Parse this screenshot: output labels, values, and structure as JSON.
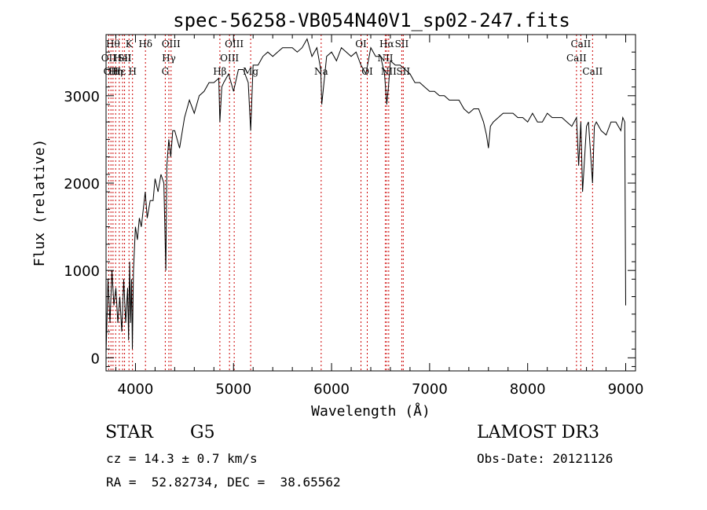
{
  "chart_data": {
    "type": "line",
    "title": "spec-56258-VB054N40V1_sp02-247.fits",
    "xlabel": "Wavelength (Å)",
    "ylabel": "Flux (relative)",
    "xlim": [
      3700,
      9100
    ],
    "ylim": [
      -150,
      3700
    ],
    "xticks": [
      4000,
      5000,
      6000,
      7000,
      8000,
      9000
    ],
    "yticks": [
      0,
      1000,
      2000,
      3000
    ],
    "grid": false,
    "series": [
      {
        "x": [
          3700,
          3720,
          3740,
          3760,
          3780,
          3800,
          3820,
          3840,
          3860,
          3880,
          3900,
          3920,
          3930,
          3940,
          3950,
          3960,
          3968,
          3980,
          4000,
          4020,
          4040,
          4060,
          4080,
          4100,
          4120,
          4150,
          4180,
          4200,
          4230,
          4260,
          4290,
          4310,
          4320,
          4340,
          4360,
          4380,
          4400,
          4450,
          4500,
          4550,
          4600,
          4650,
          4700,
          4750,
          4800,
          4850,
          4861,
          4880,
          4900,
          4950,
          5000,
          5050,
          5100,
          5150,
          5175,
          5200,
          5250,
          5300,
          5350,
          5400,
          5450,
          5500,
          5550,
          5600,
          5650,
          5700,
          5750,
          5800,
          5850,
          5890,
          5900,
          5950,
          6000,
          6050,
          6100,
          6150,
          6200,
          6250,
          6300,
          6350,
          6400,
          6450,
          6500,
          6540,
          6563,
          6580,
          6600,
          6650,
          6700,
          6750,
          6800,
          6850,
          6900,
          6950,
          7000,
          7050,
          7100,
          7150,
          7200,
          7250,
          7300,
          7350,
          7400,
          7450,
          7500,
          7550,
          7580,
          7600,
          7620,
          7650,
          7700,
          7750,
          7800,
          7850,
          7900,
          7950,
          8000,
          8050,
          8100,
          8150,
          8200,
          8250,
          8300,
          8350,
          8400,
          8450,
          8498,
          8520,
          8542,
          8560,
          8600,
          8620,
          8662,
          8680,
          8700,
          8750,
          8800,
          8850,
          8900,
          8950,
          8970,
          8990,
          9000
        ],
        "values": [
          50,
          900,
          400,
          1000,
          600,
          800,
          400,
          700,
          300,
          900,
          400,
          800,
          200,
          1100,
          400,
          900,
          100,
          1000,
          1500,
          1350,
          1600,
          1500,
          1700,
          1900,
          1600,
          1800,
          1800,
          2050,
          1900,
          2100,
          2000,
          1000,
          2200,
          2500,
          2300,
          2600,
          2600,
          2400,
          2750,
          2950,
          2800,
          3000,
          3050,
          3150,
          3150,
          3200,
          2700,
          3100,
          3150,
          3250,
          3050,
          3300,
          3300,
          3150,
          2600,
          3350,
          3350,
          3450,
          3500,
          3450,
          3500,
          3550,
          3550,
          3550,
          3500,
          3550,
          3650,
          3450,
          3550,
          3300,
          2900,
          3450,
          3500,
          3400,
          3550,
          3500,
          3450,
          3500,
          3350,
          3250,
          3550,
          3450,
          3450,
          3250,
          2900,
          3100,
          3400,
          3350,
          3350,
          3300,
          3250,
          3150,
          3150,
          3100,
          3050,
          3050,
          3000,
          3000,
          2950,
          2950,
          2950,
          2850,
          2800,
          2850,
          2850,
          2700,
          2550,
          2400,
          2650,
          2700,
          2750,
          2800,
          2800,
          2800,
          2750,
          2750,
          2700,
          2800,
          2700,
          2700,
          2800,
          2750,
          2750,
          2750,
          2700,
          2650,
          2750,
          2200,
          2700,
          1900,
          2650,
          2700,
          2000,
          2650,
          2700,
          2600,
          2550,
          2700,
          2700,
          2600,
          2750,
          2700,
          600
        ]
      }
    ],
    "lines": [
      {
        "x": 3727,
        "label": "OII",
        "row": 2
      },
      {
        "x": 3750,
        "label": "OII",
        "row": 3
      },
      {
        "x": 3771,
        "label": "Hθ",
        "row": 1
      },
      {
        "x": 3798,
        "label": "Hη",
        "row": 3
      },
      {
        "x": 3835,
        "label": "Hε",
        "row": 3
      },
      {
        "x": 3869,
        "label": "HeI",
        "row": 2
      },
      {
        "x": 3889,
        "label": "SII",
        "row": 2
      },
      {
        "x": 3934,
        "label": "K",
        "row": 1
      },
      {
        "x": 3970,
        "label": "H",
        "row": 3
      },
      {
        "x": 4102,
        "label": "Hδ",
        "row": 1
      },
      {
        "x": 4304,
        "label": "G",
        "row": 3
      },
      {
        "x": 4341,
        "label": "Hγ",
        "row": 2
      },
      {
        "x": 4363,
        "label": "OIII",
        "row": 1
      },
      {
        "x": 4861,
        "label": "Hβ",
        "row": 3
      },
      {
        "x": 4959,
        "label": "OIII",
        "row": 2
      },
      {
        "x": 5007,
        "label": "OIII",
        "row": 1
      },
      {
        "x": 5175,
        "label": "Mg",
        "row": 3
      },
      {
        "x": 5894,
        "label": "Na",
        "row": 3
      },
      {
        "x": 6300,
        "label": "OI",
        "row": 1
      },
      {
        "x": 6364,
        "label": "OI",
        "row": 3
      },
      {
        "x": 6548,
        "label": "NII",
        "row": 2
      },
      {
        "x": 6563,
        "label": "Hα",
        "row": 1
      },
      {
        "x": 6583,
        "label": "NII",
        "row": 3
      },
      {
        "x": 6716,
        "label": "SII",
        "row": 1
      },
      {
        "x": 6731,
        "label": "SII",
        "row": 3
      },
      {
        "x": 8498,
        "label": "CaII",
        "row": 2
      },
      {
        "x": 8542,
        "label": "CaII",
        "row": 1
      },
      {
        "x": 8662,
        "label": "CaII",
        "row": 3
      }
    ]
  },
  "info": {
    "object_class": "STAR",
    "subclass": "G5",
    "survey": "LAMOST DR3",
    "redshift_text": "cz = 14.3 ± 0.7 km/s",
    "obs_date": "Obs-Date: 20121126",
    "coords_text": "RA =  52.82734, DEC =  38.65562"
  }
}
